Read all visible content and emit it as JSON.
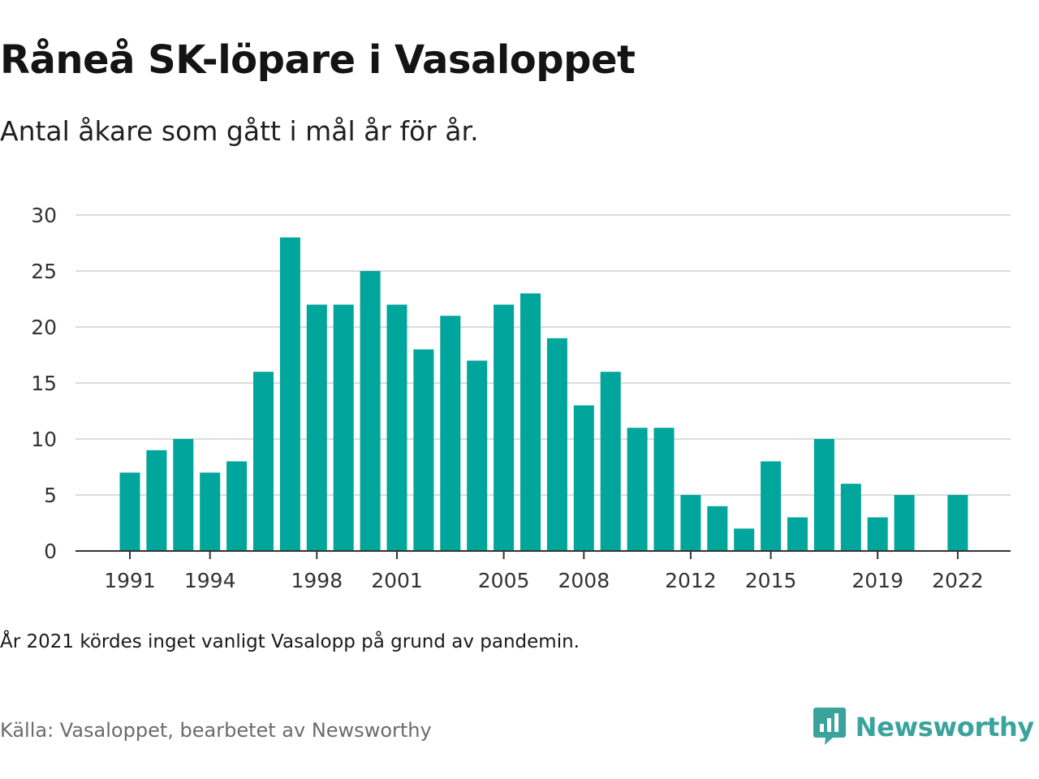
{
  "header": {
    "title": "Råneå SK-löpare i Vasaloppet",
    "subtitle": "Antal åkare som gått i mål år för år."
  },
  "chart_data": {
    "type": "bar",
    "x": [
      1991,
      1992,
      1993,
      1994,
      1995,
      1996,
      1997,
      1998,
      1999,
      2000,
      2001,
      2002,
      2003,
      2004,
      2005,
      2006,
      2007,
      2008,
      2009,
      2010,
      2011,
      2012,
      2013,
      2014,
      2015,
      2016,
      2017,
      2018,
      2019,
      2020,
      2021,
      2022
    ],
    "values": [
      7,
      9,
      10,
      7,
      8,
      16,
      28,
      22,
      22,
      25,
      22,
      18,
      21,
      17,
      22,
      23,
      19,
      13,
      16,
      11,
      11,
      5,
      4,
      2,
      8,
      3,
      10,
      6,
      3,
      5,
      null,
      5
    ],
    "x_tick_labels": [
      "1991",
      "1994",
      "1998",
      "2001",
      "2005",
      "2008",
      "2012",
      "2015",
      "2019",
      "2022"
    ],
    "y_ticks": [
      "0",
      "5",
      "10",
      "15",
      "20",
      "25",
      "30"
    ],
    "ylim": [
      0,
      30
    ],
    "grid": true,
    "bar_color": "#00a59b"
  },
  "footer": {
    "note": "År 2021 kördes inget vanligt Vasalopp på grund av pandemin.",
    "source": "Källa: Vasaloppet, bearbetet av Newsworthy",
    "brand": "Newsworthy",
    "brand_icon": "newsworthy-logo-icon",
    "brand_color": "#3aa39b"
  }
}
